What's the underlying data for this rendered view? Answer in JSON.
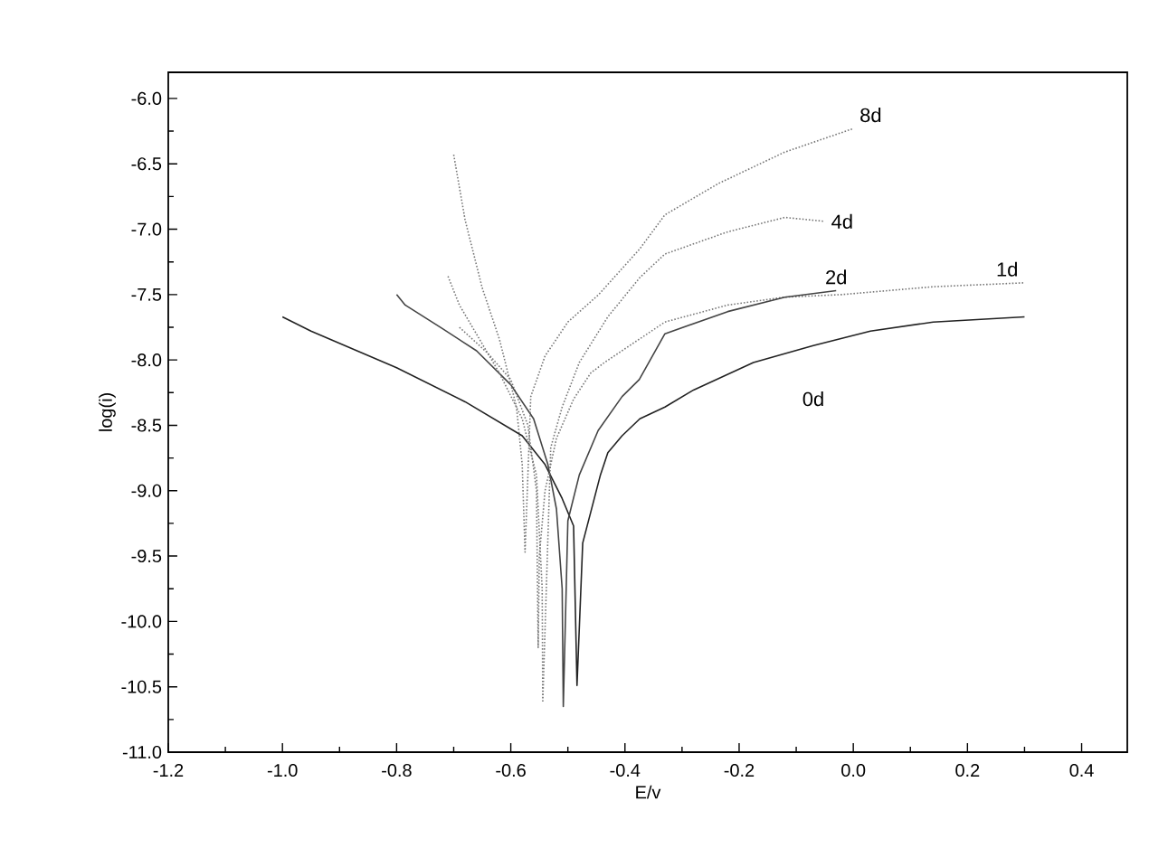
{
  "chart_data": {
    "type": "line",
    "xlabel": "E/v",
    "ylabel": "log(i)",
    "xlim": [
      -1.2,
      0.48
    ],
    "ylim": [
      -11.0,
      -5.8
    ],
    "xticks": [
      -1.2,
      {
        "value": -1,
        "label": "-1.0"
      },
      -0.8,
      -0.6,
      -0.4,
      -0.2,
      {
        "value": 0,
        "label": "0.0"
      },
      0.2,
      0.4
    ],
    "yticks": [
      {
        "value": -11,
        "label": "-11.0"
      },
      -10.5,
      {
        "value": -10,
        "label": "-10.0"
      },
      -9.5,
      {
        "value": -9,
        "label": "-9.0"
      },
      -8.5,
      {
        "value": -8,
        "label": "-8.0"
      },
      -7.5,
      {
        "value": -7,
        "label": "-7.0"
      },
      -6.5,
      {
        "value": -6,
        "label": "-6.0"
      }
    ],
    "marker": "none",
    "series": [
      {
        "name": "0d",
        "color": "#222222",
        "line_style": "solid",
        "x": [
          -1.0,
          -0.95,
          -0.8,
          -0.68,
          -0.58,
          -0.54,
          -0.51,
          -0.49,
          -0.484,
          -0.474,
          -0.443,
          -0.43,
          -0.405,
          -0.374,
          -0.33,
          -0.28,
          -0.175,
          -0.07,
          0.03,
          0.14,
          0.3
        ],
        "values": [
          -7.67,
          -7.78,
          -8.06,
          -8.32,
          -8.58,
          -8.8,
          -9.06,
          -9.27,
          -10.49,
          -9.4,
          -8.88,
          -8.71,
          -8.58,
          -8.45,
          -8.36,
          -8.23,
          -8.02,
          -7.89,
          -7.78,
          -7.71,
          -7.67
        ]
      },
      {
        "name": "1d",
        "color": "#777777",
        "line_style": "dotted",
        "x": [
          -0.69,
          -0.64,
          -0.6,
          -0.57,
          -0.555,
          -0.552,
          -0.55,
          -0.54,
          -0.52,
          -0.49,
          -0.46,
          -0.436,
          -0.33,
          -0.22,
          -0.12,
          -0.02,
          0.14,
          0.3
        ],
        "values": [
          -7.75,
          -7.95,
          -8.15,
          -8.5,
          -9.0,
          -10.2,
          -9.5,
          -9.0,
          -8.6,
          -8.3,
          -8.1,
          -8.02,
          -7.71,
          -7.58,
          -7.52,
          -7.5,
          -7.44,
          -7.41
        ]
      },
      {
        "name": "2d",
        "color": "#444444",
        "line_style": "solid",
        "x": [
          -0.8,
          -0.785,
          -0.72,
          -0.66,
          -0.6,
          -0.56,
          -0.535,
          -0.52,
          -0.51,
          -0.508,
          -0.5,
          -0.48,
          -0.447,
          -0.405,
          -0.375,
          -0.33,
          -0.22,
          -0.12,
          -0.03
        ],
        "values": [
          -7.5,
          -7.58,
          -7.76,
          -7.93,
          -8.19,
          -8.45,
          -8.8,
          -9.14,
          -9.75,
          -10.65,
          -9.23,
          -8.88,
          -8.54,
          -8.28,
          -8.15,
          -7.8,
          -7.63,
          -7.52,
          -7.47
        ]
      },
      {
        "name": "4d",
        "color": "#777777",
        "line_style": "dotted",
        "x": [
          -0.71,
          -0.69,
          -0.655,
          -0.62,
          -0.58,
          -0.555,
          -0.545,
          -0.544,
          -0.53,
          -0.51,
          -0.48,
          -0.43,
          -0.374,
          -0.33,
          -0.22,
          -0.12,
          -0.05
        ],
        "values": [
          -7.36,
          -7.58,
          -7.84,
          -8.1,
          -8.45,
          -8.88,
          -9.75,
          -10.62,
          -8.67,
          -8.36,
          -8.02,
          -7.67,
          -7.37,
          -7.19,
          -7.02,
          -6.91,
          -6.94
        ]
      },
      {
        "name": "8d",
        "color": "#777777",
        "line_style": "dotted",
        "x": [
          -0.7,
          -0.68,
          -0.65,
          -0.62,
          -0.59,
          -0.58,
          -0.575,
          -0.565,
          -0.54,
          -0.5,
          -0.446,
          -0.374,
          -0.33,
          -0.236,
          -0.12,
          0.0
        ],
        "values": [
          -6.43,
          -6.93,
          -7.45,
          -7.84,
          -8.36,
          -8.8,
          -9.47,
          -8.28,
          -7.97,
          -7.71,
          -7.5,
          -7.15,
          -6.89,
          -6.65,
          -6.41,
          -6.23
        ]
      }
    ]
  }
}
